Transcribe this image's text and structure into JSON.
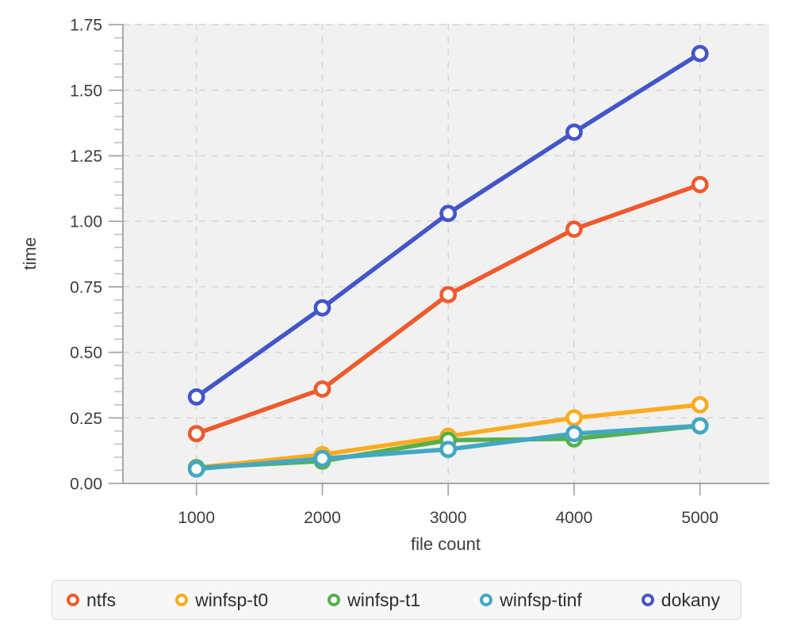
{
  "figure": {
    "background": "#ffffff",
    "plot_background": "#f1f1f1",
    "grid_color": "#d7d7d7",
    "axis_color": "#a6a6a6",
    "major_tick_color": "#a6a6a6",
    "minor_tick_color": "#c2c2c2",
    "text_color": "#3d3d3d"
  },
  "chart_data": {
    "type": "line",
    "title": "",
    "xlabel": "file count",
    "ylabel": "time",
    "x": [
      1000,
      2000,
      3000,
      4000,
      5000
    ],
    "x_tick_labels": [
      "1000",
      "2000",
      "3000",
      "4000",
      "5000"
    ],
    "y_tick_labels": [
      "0.00",
      "0.25",
      "0.50",
      "0.75",
      "1.00",
      "1.25",
      "1.50",
      "1.75"
    ],
    "ylim": [
      0,
      1.75
    ],
    "y_major_step": 0.25,
    "y_minor_step": 0.05,
    "grid": "dashed-both",
    "marker_style": "open-circle",
    "legend_position": "bottom",
    "series": [
      {
        "name": "ntfs",
        "color": "#ee5a2d",
        "values": [
          0.19,
          0.36,
          0.72,
          0.97,
          1.14
        ]
      },
      {
        "name": "winfsp-t0",
        "color": "#fbab20",
        "values": [
          0.06,
          0.11,
          0.18,
          0.25,
          0.3
        ]
      },
      {
        "name": "winfsp-t1",
        "color": "#55b04e",
        "values": [
          0.06,
          0.085,
          0.165,
          0.17,
          0.22
        ]
      },
      {
        "name": "winfsp-tinf",
        "color": "#43a7c3",
        "values": [
          0.055,
          0.095,
          0.13,
          0.19,
          0.22
        ]
      },
      {
        "name": "dokany",
        "color": "#4355c8",
        "values": [
          0.33,
          0.67,
          1.03,
          1.34,
          1.64
        ]
      }
    ]
  }
}
